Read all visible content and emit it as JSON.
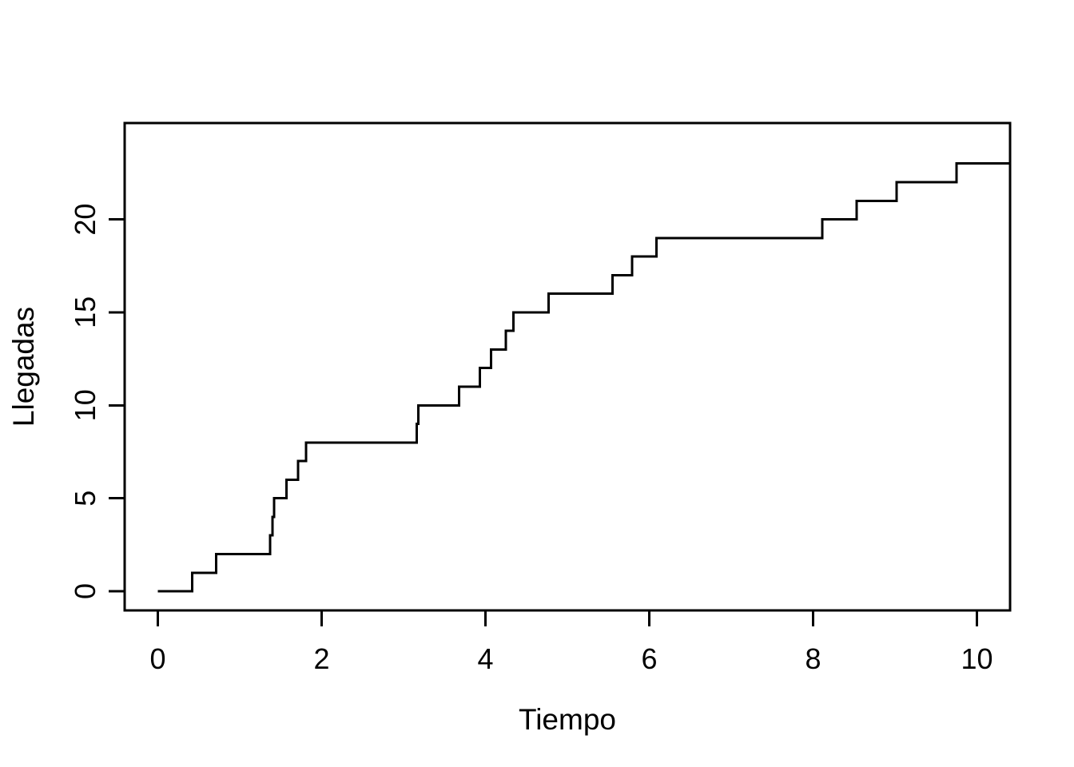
{
  "figure": {
    "background": "#ffffff",
    "line_color": "#000000",
    "text_color": "#000000"
  },
  "chart_data": {
    "type": "line",
    "subtype": "step-post",
    "title": "",
    "xlabel": "Tiempo",
    "ylabel": "Llegadas",
    "x_ticks": [
      0,
      2,
      4,
      6,
      8,
      10
    ],
    "y_ticks": [
      0,
      5,
      10,
      15,
      20
    ],
    "xlim": [
      -0.405,
      10.405
    ],
    "ylim": [
      -1.03,
      25.18
    ],
    "grid": false,
    "legend": null,
    "series": [
      {
        "name": "Llegadas",
        "start": {
          "x": 0,
          "y": 0
        },
        "arrival_times": [
          0.42,
          0.71,
          1.37,
          1.4,
          1.42,
          1.57,
          1.71,
          1.81,
          3.16,
          3.18,
          3.68,
          3.93,
          4.07,
          4.25,
          4.34,
          4.77,
          5.55,
          5.79,
          6.09,
          8.11,
          8.53,
          9.02,
          9.75
        ],
        "counts_after": [
          1,
          2,
          3,
          4,
          5,
          6,
          7,
          8,
          9,
          10,
          11,
          12,
          13,
          14,
          15,
          16,
          17,
          18,
          19,
          20,
          21,
          22,
          23
        ],
        "end_x": 10.405
      }
    ]
  }
}
